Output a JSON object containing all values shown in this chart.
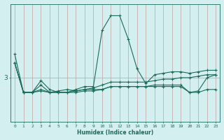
{
  "xlabel": "Humidex (Indice chaleur)",
  "background_color": "#d4efef",
  "line_color": "#1a6b5a",
  "vgrid_color": "#c4a0a0",
  "hgrid_color": "#c4a0a0",
  "xlim": [
    -0.5,
    23.5
  ],
  "ylim": [
    1.5,
    5.5
  ],
  "ytick_values": [
    3
  ],
  "xtick_labels": [
    "0",
    "1",
    "2",
    "3",
    "4",
    "5",
    "6",
    "7",
    "8",
    "9",
    "10",
    "11",
    "12",
    "13",
    "14",
    "15",
    "16",
    "17",
    "18",
    "19",
    "20",
    "21",
    "22",
    "23"
  ],
  "series": [
    [
      3.8,
      2.5,
      2.5,
      2.9,
      2.6,
      2.5,
      2.5,
      2.6,
      2.7,
      2.7,
      4.6,
      5.1,
      5.1,
      4.3,
      3.3,
      2.8,
      3.1,
      3.15,
      3.2,
      3.2,
      3.15,
      3.2,
      3.25,
      3.25
    ],
    [
      3.5,
      2.5,
      2.5,
      2.75,
      2.5,
      2.5,
      2.5,
      2.55,
      2.6,
      2.65,
      2.75,
      2.85,
      2.85,
      2.85,
      2.85,
      2.85,
      2.9,
      2.95,
      2.95,
      3.0,
      3.0,
      3.05,
      3.1,
      3.1
    ],
    [
      3.5,
      2.5,
      2.5,
      2.6,
      2.5,
      2.5,
      2.5,
      2.5,
      2.55,
      2.55,
      2.6,
      2.7,
      2.7,
      2.7,
      2.7,
      2.7,
      2.75,
      2.75,
      2.75,
      2.75,
      2.5,
      2.55,
      3.0,
      3.1
    ],
    [
      3.5,
      2.5,
      2.5,
      2.55,
      2.5,
      2.55,
      2.6,
      2.55,
      2.6,
      2.6,
      2.6,
      2.7,
      2.7,
      2.7,
      2.7,
      2.7,
      2.7,
      2.7,
      2.7,
      2.7,
      2.5,
      2.5,
      2.6,
      2.6
    ]
  ]
}
